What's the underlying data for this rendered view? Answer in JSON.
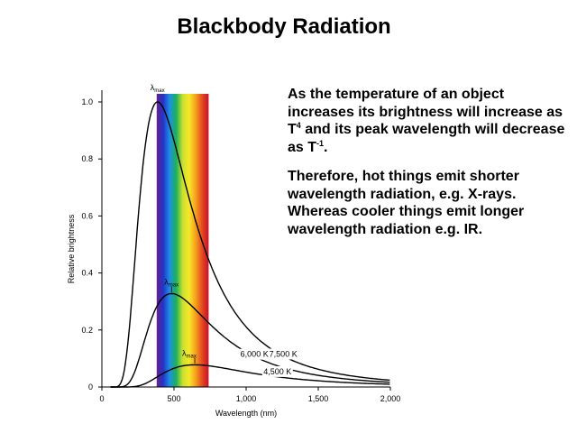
{
  "slide": {
    "title": "Blackbody Radiation",
    "paragraph1": {
      "part1": "As the temperature of an object increases its brightness will increase as T",
      "sup1": "4",
      "part2": " and its peak wavelength will decrease as T",
      "sup2": "-1",
      "part3": "."
    },
    "paragraph2": "Therefore, hot things emit shorter wavelength radiation, e.g. X-rays. Whereas cooler things emit longer wavelength radiation e.g. IR."
  },
  "chart_data": {
    "type": "line",
    "title": "",
    "xlabel": "Wavelength (nm)",
    "ylabel": "Relative brightness",
    "xlim": [
      0,
      2000
    ],
    "ylim": [
      0,
      1.0
    ],
    "x_ticks": [
      0,
      500,
      1000,
      1500,
      2000
    ],
    "x_tick_labels": [
      "0",
      "500",
      "1,000",
      "1,500",
      "2,000"
    ],
    "y_ticks": [
      0,
      0.2,
      0.4,
      0.6,
      0.8,
      1.0
    ],
    "y_tick_labels": [
      "0",
      "0.2",
      "0.4",
      "0.6",
      "0.8",
      "1.0"
    ],
    "visible_band": {
      "x_range": [
        380,
        740
      ],
      "colors": [
        "#6a1f8c",
        "#2233c8",
        "#1f8fe6",
        "#1bb05a",
        "#c8e030",
        "#f6e82a",
        "#f5a01c",
        "#e44a1f",
        "#c8102a"
      ]
    },
    "series": [
      {
        "label": "7,500 K",
        "temperature": 7500,
        "peak_x": 386,
        "peak_y": 1.0,
        "color": "#000000"
      },
      {
        "label": "6,000 K",
        "temperature": 6000,
        "peak_x": 483,
        "peak_y": 0.33,
        "color": "#000000"
      },
      {
        "label": "4,500 K",
        "temperature": 4500,
        "peak_x": 644,
        "peak_y": 0.08,
        "color": "#000000"
      }
    ],
    "annotations": [
      {
        "text": "λ",
        "subscript": "max",
        "target": "7,500 K"
      },
      {
        "text": "λ",
        "subscript": "max",
        "target": "6,000 K"
      },
      {
        "text": "λ",
        "subscript": "max",
        "target": "4,500 K"
      }
    ],
    "grid": false,
    "legend": "none"
  }
}
